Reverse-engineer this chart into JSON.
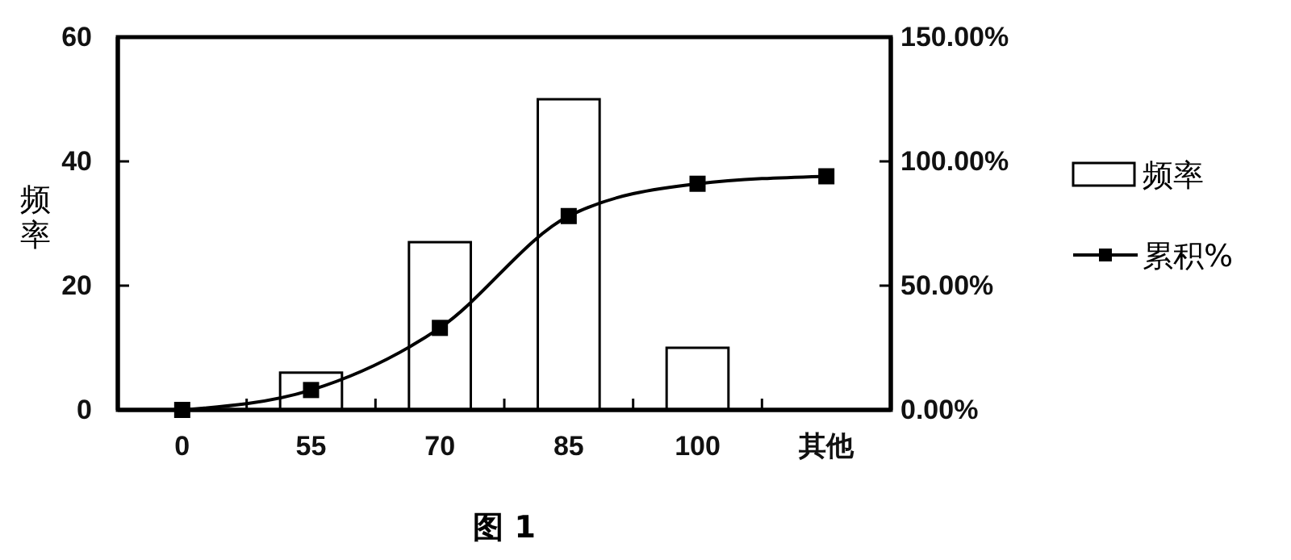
{
  "chart_data": {
    "type": "bar",
    "title": "图 1",
    "ylabel": "频率",
    "categories": [
      "0",
      "55",
      "70",
      "85",
      "100",
      "其他"
    ],
    "series": [
      {
        "name": "频率",
        "color": "#ffffff",
        "values": [
          0,
          6,
          27,
          50,
          10,
          0
        ]
      },
      {
        "name": "累积%",
        "type": "line",
        "axis": "y2",
        "color": "#000000",
        "marker": "square",
        "values": [
          0,
          8,
          33,
          78,
          91,
          94
        ]
      }
    ],
    "ylim": [
      0,
      60
    ],
    "yticks": [
      0,
      20,
      40,
      60
    ],
    "y2lim": [
      0,
      150
    ],
    "y2ticks": [
      {
        "value": 0,
        "label": "0.00%"
      },
      {
        "value": 50,
        "label": "50.00%"
      },
      {
        "value": 100,
        "label": "100.00%"
      },
      {
        "value": 150,
        "label": "150.00%"
      }
    ],
    "legend": "right",
    "grid": false
  }
}
